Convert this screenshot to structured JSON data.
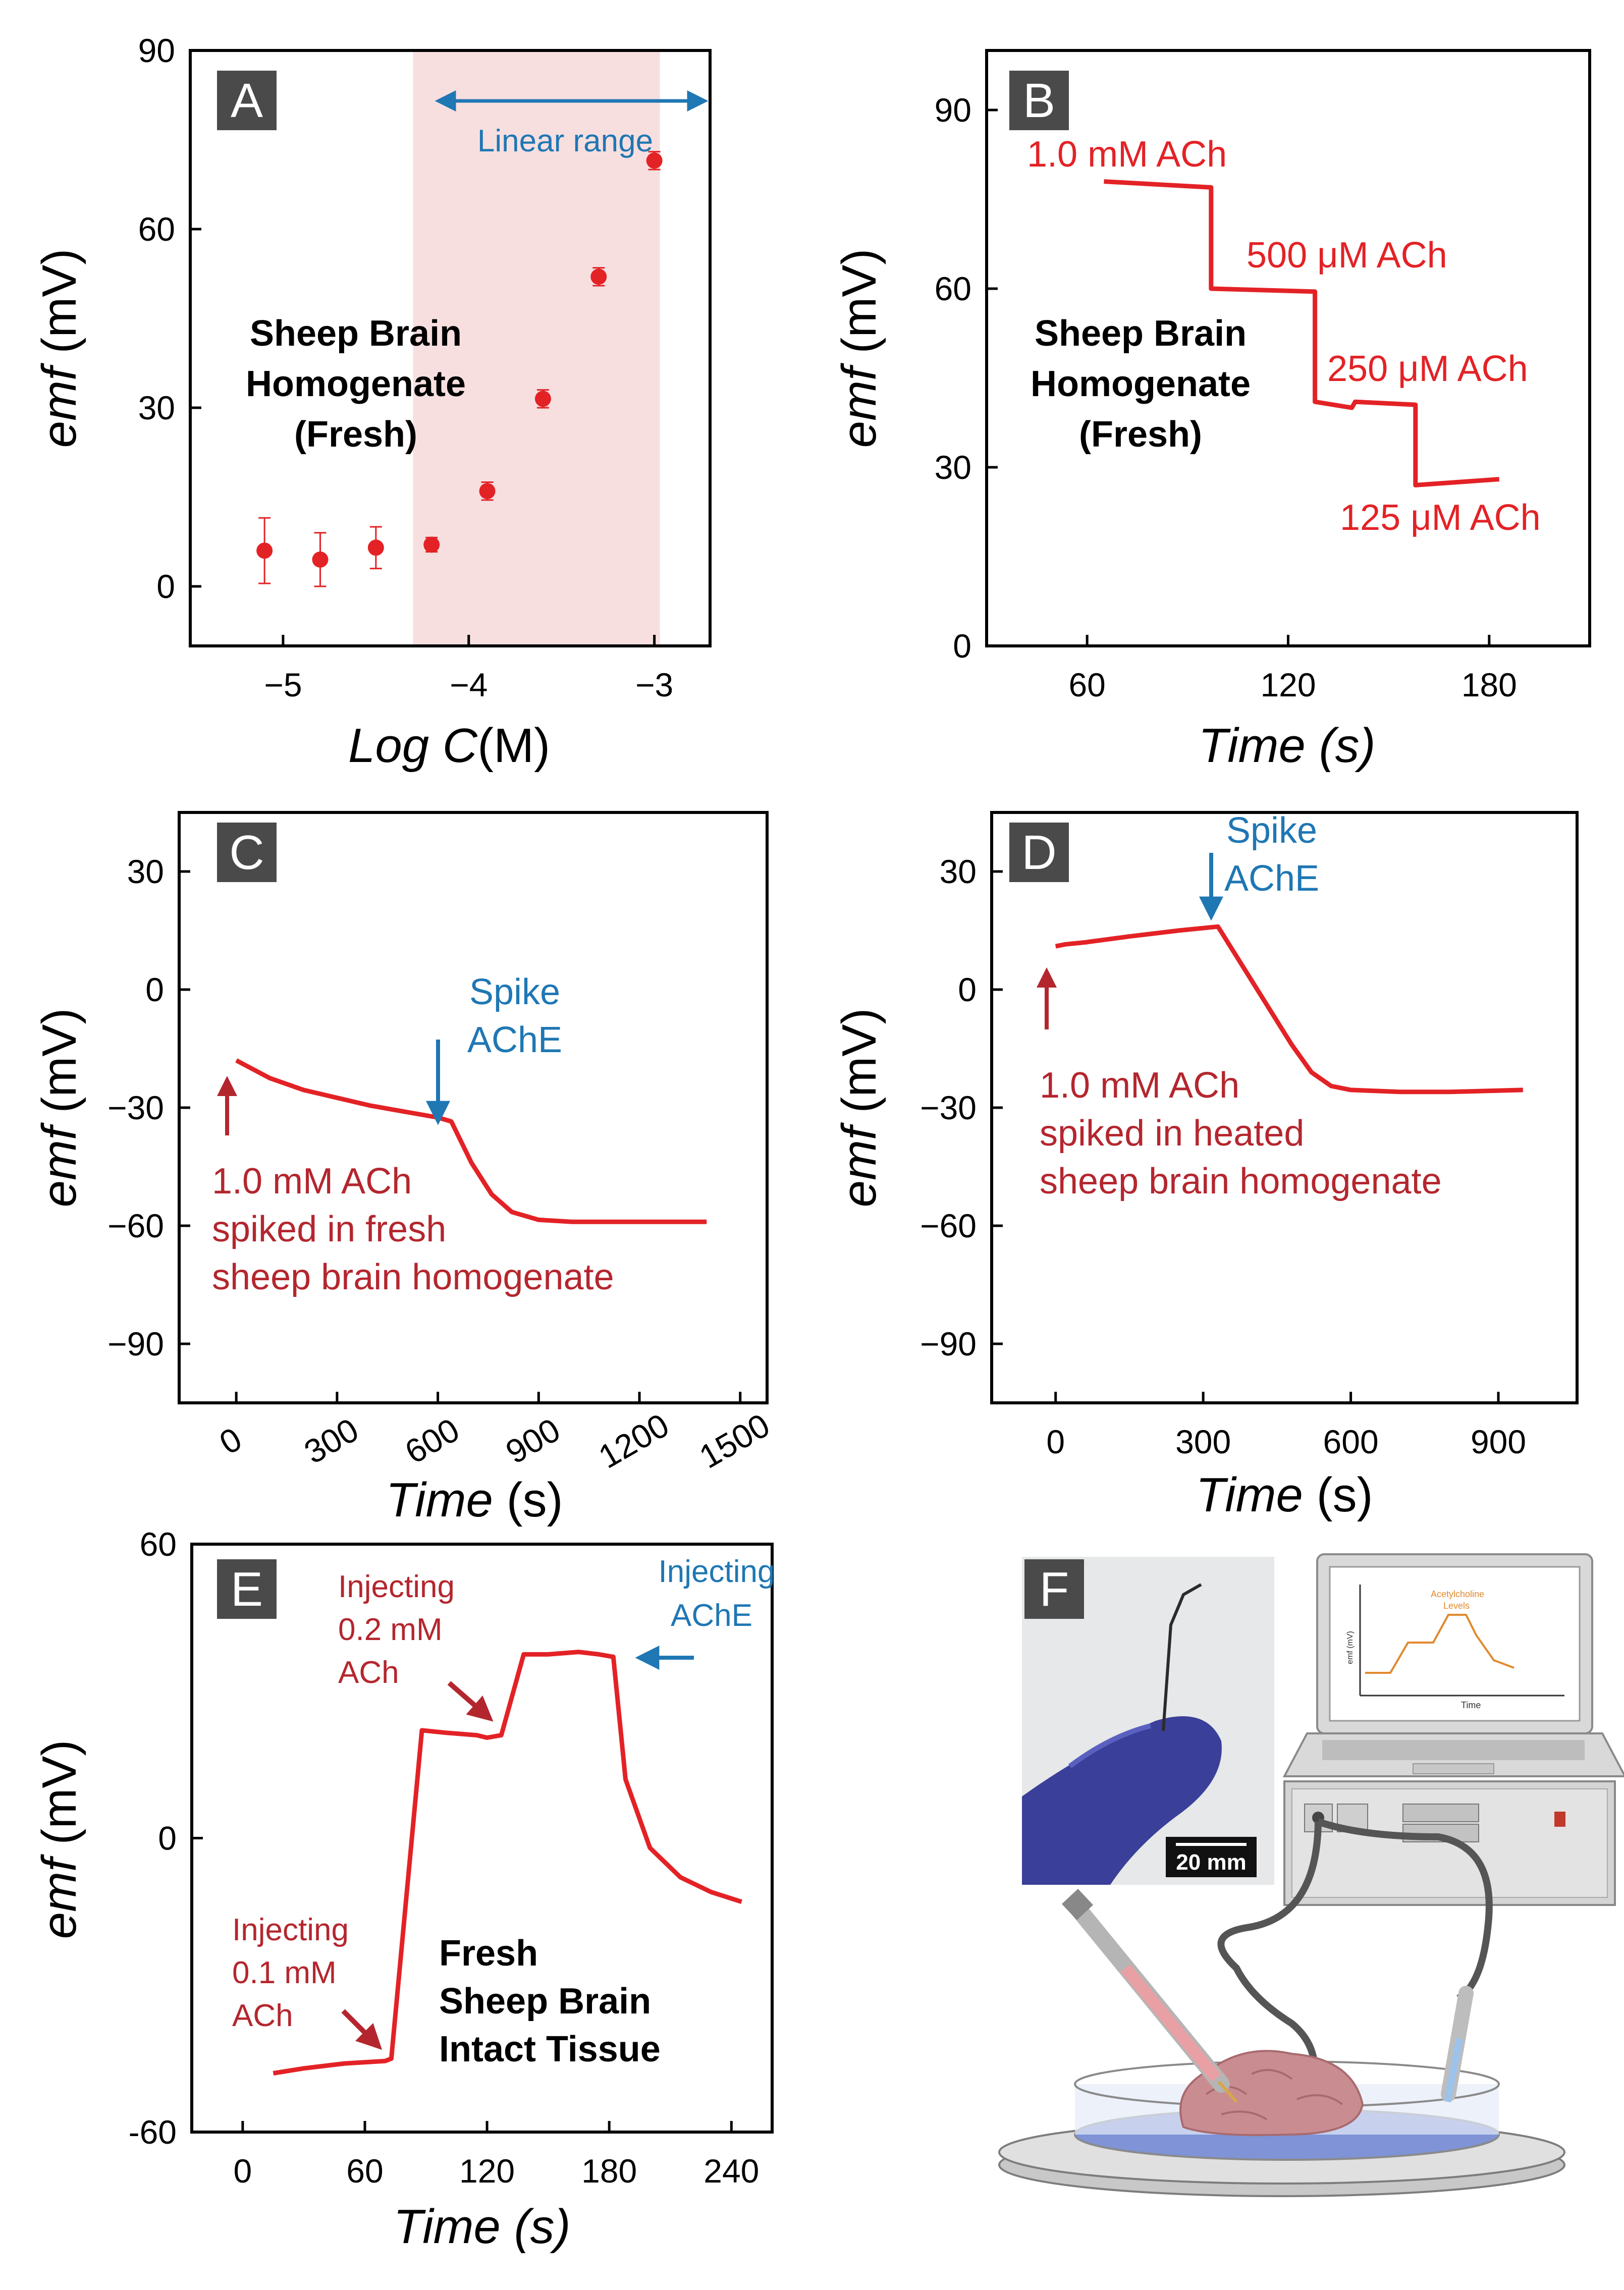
{
  "colors": {
    "red": "#e32226",
    "darkred": "#b4262e",
    "blue": "#1f77b4",
    "band": "#f7dfe0",
    "panel_letter_bg": "#4a4a4a"
  },
  "panels": {
    "A": {
      "letter": "A",
      "text1": "Sheep Brain",
      "text2": "Homogenate",
      "text3": "(Fresh)",
      "range_label": "Linear range"
    },
    "B": {
      "letter": "B",
      "text1": "Sheep Brain",
      "text2": "Homogenate",
      "text3": "(Fresh)",
      "labels": [
        "1.0 mM ACh",
        "500 μM ACh",
        "250 μM ACh",
        "125 μM ACh"
      ]
    },
    "C": {
      "letter": "C",
      "spike1": "Spike",
      "spike2": "AChE",
      "note1": "1.0 mM ACh",
      "note2": "spiked in fresh",
      "note3": "sheep brain homogenate"
    },
    "D": {
      "letter": "D",
      "spike1": "Spike",
      "spike2": "AChE",
      "note1": "1.0 mM ACh",
      "note2": "spiked in heated",
      "note3": "sheep brain homogenate"
    },
    "E": {
      "letter": "E",
      "inj1a": "Injecting",
      "inj1b": "0.1 mM",
      "inj1c": "ACh",
      "inj2a": "Injecting",
      "inj2b": "0.2 mM",
      "inj2c": "ACh",
      "inj3a": "Injecting",
      "inj3b": "AChE",
      "text1": "Fresh",
      "text2": "Sheep Brain",
      "text3": "Intact Tissue"
    },
    "F": {
      "letter": "F",
      "scalebar": "20 mm",
      "laptop_title": "Acetylcholine",
      "laptop_title2": "Levels",
      "laptop_xlabel": "Time",
      "laptop_ylabel": "emf (mV)"
    }
  },
  "chart_data": [
    {
      "panel": "A",
      "type": "scatter",
      "xlabel_italic": "Log C",
      "xlabel_unit": "(M)",
      "ylabel_italic": "emf",
      "ylabel_unit": "(mV)",
      "xlim": [
        -5.5,
        -2.7
      ],
      "ylim": [
        -10,
        90
      ],
      "xticks": [
        -5,
        -4,
        -3
      ],
      "xtick_labels": [
        "−5",
        "−4",
        "−3"
      ],
      "yticks": [
        0,
        30,
        60,
        90
      ],
      "ytick_labels": [
        "0",
        "30",
        "60",
        "90"
      ],
      "linear_range": [
        -4.3,
        -2.97
      ],
      "points": [
        {
          "x": -5.1,
          "y": 6,
          "err": 5.5
        },
        {
          "x": -4.8,
          "y": 4.5,
          "err": 4.5
        },
        {
          "x": -4.5,
          "y": 6.5,
          "err": 3.5
        },
        {
          "x": -4.2,
          "y": 7,
          "err": 1.2
        },
        {
          "x": -3.9,
          "y": 16,
          "err": 1.5
        },
        {
          "x": -3.6,
          "y": 31.5,
          "err": 1.5
        },
        {
          "x": -3.3,
          "y": 52,
          "err": 1.5
        },
        {
          "x": -3.0,
          "y": 71.5,
          "err": 1.5
        }
      ]
    },
    {
      "panel": "B",
      "type": "line",
      "xlabel_italic": "Time (s)",
      "ylabel_italic": "emf",
      "ylabel_unit": "(mV)",
      "xlim": [
        30,
        210
      ],
      "ylim": [
        0,
        100
      ],
      "xticks": [
        60,
        120,
        180
      ],
      "xtick_labels": [
        "60",
        "120",
        "180"
      ],
      "yticks": [
        0,
        30,
        60,
        90
      ],
      "ytick_labels": [
        "0",
        "30",
        "60",
        "90"
      ],
      "series": [
        {
          "name": "emf",
          "x": [
            65,
            97,
            97,
            128,
            128,
            139,
            140,
            158,
            158,
            183
          ],
          "y": [
            78,
            77,
            60,
            59.5,
            41,
            40,
            41,
            40.5,
            27,
            28
          ]
        }
      ]
    },
    {
      "panel": "C",
      "type": "line",
      "xlabel_italic": "Time",
      "xlabel_unit": "(s)",
      "ylabel_italic": "emf",
      "ylabel_unit": "(mV)",
      "xlim": [
        -170,
        1580
      ],
      "ylim": [
        -105,
        45
      ],
      "xticks": [
        0,
        300,
        600,
        900,
        1200,
        1500
      ],
      "xtick_labels": [
        "0",
        "300",
        "600",
        "900",
        "1200",
        "1500"
      ],
      "yticks": [
        -90,
        -60,
        -30,
        0,
        30
      ],
      "ytick_labels": [
        "−90",
        "−60",
        "−30",
        "0",
        "30"
      ],
      "series": [
        {
          "name": "emf",
          "x": [
            0,
            100,
            200,
            300,
            400,
            500,
            600,
            640,
            700,
            760,
            820,
            900,
            1000,
            1100,
            1200,
            1300,
            1400
          ],
          "y": [
            -18,
            -22.5,
            -25.5,
            -27.5,
            -29.5,
            -31,
            -32.5,
            -33.5,
            -44,
            -52,
            -56.5,
            -58.5,
            -59,
            -59,
            -59,
            -59,
            -59
          ]
        }
      ]
    },
    {
      "panel": "D",
      "type": "line",
      "xlabel_italic": "Time",
      "xlabel_unit": "(s)",
      "ylabel_italic": "emf",
      "ylabel_unit": "(mV)",
      "xlim": [
        -130,
        1060
      ],
      "ylim": [
        -105,
        45
      ],
      "xticks": [
        0,
        300,
        600,
        900
      ],
      "xtick_labels": [
        "0",
        "300",
        "600",
        "900"
      ],
      "yticks": [
        -90,
        -60,
        -30,
        0,
        30
      ],
      "ytick_labels": [
        "−90",
        "−60",
        "−30",
        "0",
        "30"
      ],
      "series": [
        {
          "name": "emf",
          "x": [
            0,
            20,
            60,
            150,
            250,
            330,
            360,
            420,
            480,
            520,
            560,
            600,
            700,
            800,
            950
          ],
          "y": [
            11,
            11.5,
            12,
            13.5,
            15,
            16,
            10,
            -2,
            -14,
            -21,
            -24.5,
            -25.5,
            -26,
            -26,
            -25.5
          ]
        }
      ]
    },
    {
      "panel": "E",
      "type": "line",
      "xlabel_italic": "Time (s)",
      "ylabel_italic": "emf",
      "ylabel_unit": "(mV)",
      "xlim": [
        -25,
        260
      ],
      "ylim": [
        -60,
        60
      ],
      "xticks": [
        0,
        60,
        120,
        180,
        240
      ],
      "xtick_labels": [
        "0",
        "60",
        "120",
        "180",
        "240"
      ],
      "yticks": [
        -60,
        0,
        60
      ],
      "ytick_labels": [
        "-60",
        "0",
        "60"
      ],
      "series": [
        {
          "name": "emf",
          "x": [
            15,
            30,
            50,
            70,
            73,
            88,
            100,
            115,
            120,
            127,
            138,
            150,
            165,
            175,
            182,
            188,
            200,
            215,
            230,
            245
          ],
          "y": [
            -48,
            -47,
            -46,
            -45.5,
            -45,
            22,
            21.5,
            21,
            20.5,
            21,
            37.5,
            37.5,
            38,
            37.5,
            37,
            12,
            -2,
            -8,
            -11,
            -13
          ]
        }
      ]
    }
  ]
}
